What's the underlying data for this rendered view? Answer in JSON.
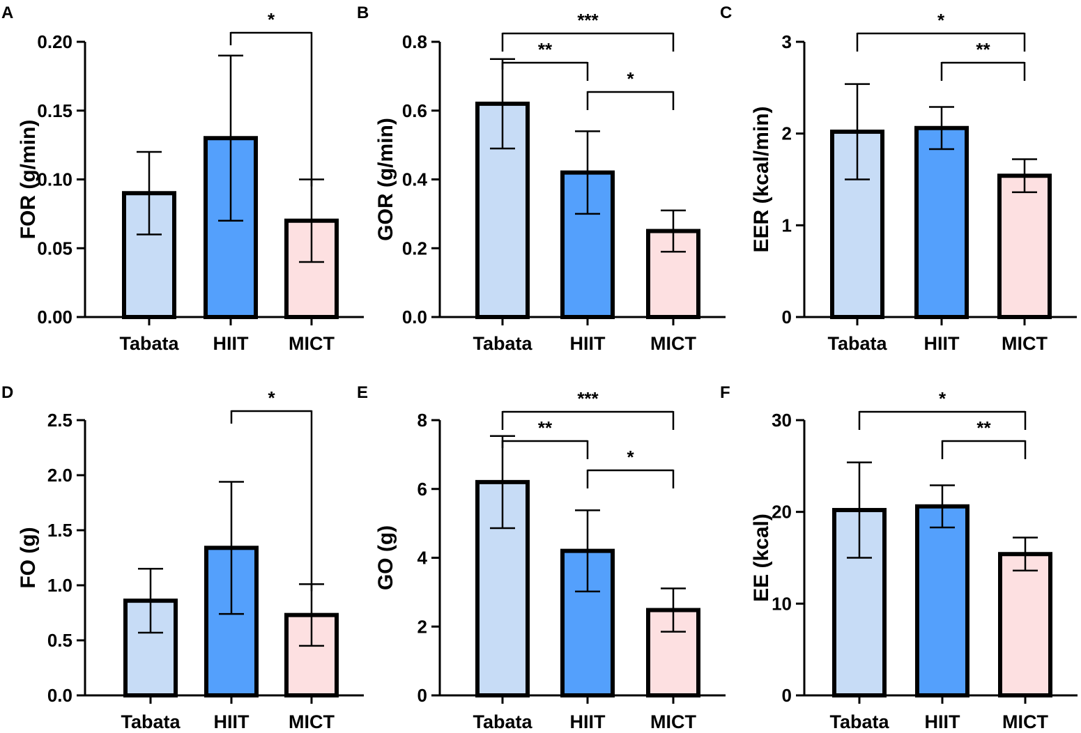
{
  "figure": {
    "colors": {
      "Tabata": "#c7dcf6",
      "HIIT": "#54a0fc",
      "MICT": "#fde0e1",
      "outline": "#000000"
    },
    "panels": [
      {
        "letter": "A",
        "chart_data": {
          "type": "bar",
          "ylabel": "FOR  (g/min)",
          "categories": [
            "Tabata",
            "HIIT",
            "MICT"
          ],
          "values": [
            0.09,
            0.13,
            0.07
          ],
          "errors": [
            0.03,
            0.06,
            0.03
          ],
          "ylim": [
            0,
            0.2
          ],
          "yticks": [
            0,
            0.05,
            0.1,
            0.15,
            0.2
          ],
          "ytick_labels": [
            "0.00",
            "0.05",
            "0.10",
            "0.15",
            "0.20"
          ],
          "significance": [
            {
              "from": "HIIT",
              "to": "MICT",
              "label": "*"
            }
          ]
        }
      },
      {
        "letter": "B",
        "chart_data": {
          "type": "bar",
          "ylabel": "GOR  (g/min)",
          "categories": [
            "Tabata",
            "HIIT",
            "MICT"
          ],
          "values": [
            0.62,
            0.42,
            0.25
          ],
          "errors": [
            0.13,
            0.12,
            0.06
          ],
          "ylim": [
            0,
            0.8
          ],
          "yticks": [
            0,
            0.2,
            0.4,
            0.6,
            0.8
          ],
          "ytick_labels": [
            "0.0",
            "0.2",
            "0.4",
            "0.6",
            "0.8"
          ],
          "significance": [
            {
              "from": "Tabata",
              "to": "MICT",
              "label": "***"
            },
            {
              "from": "Tabata",
              "to": "HIIT",
              "label": "**"
            },
            {
              "from": "HIIT",
              "to": "MICT",
              "label": "*"
            }
          ]
        }
      },
      {
        "letter": "C",
        "chart_data": {
          "type": "bar",
          "ylabel": "EER  (kcal/min)",
          "categories": [
            "Tabata",
            "HIIT",
            "MICT"
          ],
          "values": [
            2.02,
            2.06,
            1.54
          ],
          "errors": [
            0.52,
            0.23,
            0.18
          ],
          "ylim": [
            0,
            3
          ],
          "yticks": [
            0,
            1,
            2,
            3
          ],
          "ytick_labels": [
            "0",
            "1",
            "2",
            "3"
          ],
          "significance": [
            {
              "from": "Tabata",
              "to": "MICT",
              "label": "*"
            },
            {
              "from": "HIIT",
              "to": "MICT",
              "label": "**"
            }
          ]
        }
      },
      {
        "letter": "D",
        "chart_data": {
          "type": "bar",
          "ylabel": "FO  (g)",
          "categories": [
            "Tabata",
            "HIIT",
            "MICT"
          ],
          "values": [
            0.86,
            1.34,
            0.73
          ],
          "errors": [
            0.29,
            0.6,
            0.28
          ],
          "ylim": [
            0,
            2.5
          ],
          "yticks": [
            0,
            0.5,
            1,
            1.5,
            2,
            2.5
          ],
          "ytick_labels": [
            "0.0",
            "0.5",
            "1.0",
            "1.5",
            "2.0",
            "2.5"
          ],
          "significance": [
            {
              "from": "HIIT",
              "to": "MICT",
              "label": "*"
            }
          ]
        }
      },
      {
        "letter": "E",
        "chart_data": {
          "type": "bar",
          "ylabel": "GO  (g)",
          "categories": [
            "Tabata",
            "HIIT",
            "MICT"
          ],
          "values": [
            6.2,
            4.2,
            2.48
          ],
          "errors": [
            1.34,
            1.18,
            0.63
          ],
          "ylim": [
            0,
            8
          ],
          "yticks": [
            0,
            2,
            4,
            6,
            8
          ],
          "ytick_labels": [
            "0",
            "2",
            "4",
            "6",
            "8"
          ],
          "significance": [
            {
              "from": "Tabata",
              "to": "MICT",
              "label": "***"
            },
            {
              "from": "Tabata",
              "to": "HIIT",
              "label": "**"
            },
            {
              "from": "HIIT",
              "to": "MICT",
              "label": "*"
            }
          ]
        }
      },
      {
        "letter": "F",
        "chart_data": {
          "type": "bar",
          "ylabel": "EE  (kcal)",
          "categories": [
            "Tabata",
            "HIIT",
            "MICT"
          ],
          "values": [
            20.2,
            20.6,
            15.4
          ],
          "errors": [
            5.2,
            2.3,
            1.8
          ],
          "ylim": [
            0,
            30
          ],
          "yticks": [
            0,
            10,
            20,
            30
          ],
          "ytick_labels": [
            "0",
            "10",
            "20",
            "30"
          ],
          "significance": [
            {
              "from": "Tabata",
              "to": "MICT",
              "label": "*"
            },
            {
              "from": "HIIT",
              "to": "MICT",
              "label": "**"
            }
          ]
        }
      }
    ]
  }
}
